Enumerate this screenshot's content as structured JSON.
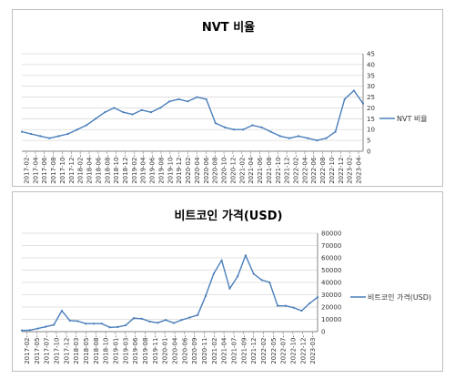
{
  "colors": {
    "series": "#4a7ebb",
    "grid": "#d9d9d9",
    "axis": "#868686"
  },
  "chart_data": [
    {
      "type": "line",
      "title": "NVT 비율",
      "series": [
        {
          "name": "NVT 비율"
        }
      ],
      "ylim": [
        0,
        45
      ],
      "yticks": [
        "0",
        "5",
        "10",
        "15",
        "20",
        "25",
        "30",
        "35",
        "40",
        "45"
      ],
      "xtick_labels": [
        "2017-02-",
        "2017-04-",
        "2017-06-",
        "2017-08-",
        "2017-10-",
        "2017-12-",
        "2018-02-",
        "2018-04-",
        "2018-06-",
        "2018-08-",
        "2018-10-",
        "2018-12-",
        "2019-02-",
        "2019-04-",
        "2019-06-",
        "2019-08-",
        "2019-10-",
        "2019-12-",
        "2020-02-",
        "2020-04-",
        "2020-06-",
        "2020-08-",
        "2020-10-",
        "2020-12-",
        "2021-02-",
        "2021-04-",
        "2021-06-",
        "2021-08-",
        "2021-10-",
        "2021-12-",
        "2022-02-",
        "2022-04-",
        "2022-06-",
        "2022-08-",
        "2022-10-",
        "2022-12-",
        "2023-02-",
        "2023-04-"
      ],
      "x": [
        "2017-02",
        "2017-04",
        "2017-06",
        "2017-08",
        "2017-10",
        "2017-12",
        "2018-02",
        "2018-04",
        "2018-06",
        "2018-08",
        "2018-10",
        "2018-12",
        "2019-02",
        "2019-04",
        "2019-06",
        "2019-08",
        "2019-10",
        "2019-12",
        "2020-02",
        "2020-04",
        "2020-06",
        "2020-08",
        "2020-10",
        "2020-12",
        "2021-02",
        "2021-04",
        "2021-06",
        "2021-08",
        "2021-10",
        "2021-12",
        "2022-02",
        "2022-04",
        "2022-06",
        "2022-08",
        "2022-10",
        "2022-12",
        "2023-02",
        "2023-04"
      ],
      "values": [
        9,
        8,
        7,
        6,
        7,
        8,
        10,
        12,
        15,
        18,
        20,
        18,
        17,
        19,
        18,
        20,
        23,
        24,
        23,
        25,
        24,
        13,
        11,
        10,
        10,
        12,
        11,
        9,
        7,
        6,
        7,
        6,
        5,
        6,
        9,
        24,
        28,
        22
      ],
      "grid": true,
      "legend": "right"
    },
    {
      "type": "line",
      "title": "비트코인 가격(USD)",
      "series": [
        {
          "name": "비트코인 가격(USD)"
        }
      ],
      "ylim": [
        0,
        80000
      ],
      "yticks": [
        "0",
        "10000",
        "20000",
        "30000",
        "40000",
        "50000",
        "60000",
        "70000",
        "80000"
      ],
      "xtick_labels": [
        "2017-02-",
        "2017-05-",
        "2017-07-",
        "2017-10-",
        "2017-12-",
        "2018-03-",
        "2018-05-",
        "2018-08-",
        "2018-10-",
        "2019-01-",
        "2019-03-",
        "2019-06-",
        "2019-08-",
        "2019-11-",
        "2020-01-",
        "2020-04-",
        "2020-06-",
        "2020-09-",
        "2020-11-",
        "2021-02-",
        "2021-04-",
        "2021-07-",
        "2021-09-",
        "2021-12-",
        "2022-02-",
        "2022-05-",
        "2022-07-",
        "2022-10-",
        "2022-12-",
        "2023-03-"
      ],
      "x": [
        "2017-02",
        "2017-04",
        "2017-06",
        "2017-08",
        "2017-10",
        "2017-12",
        "2018-02",
        "2018-04",
        "2018-06",
        "2018-08",
        "2018-10",
        "2018-12",
        "2019-02",
        "2019-04",
        "2019-06",
        "2019-08",
        "2019-10",
        "2019-12",
        "2020-02",
        "2020-04",
        "2020-06",
        "2020-08",
        "2020-10",
        "2020-12",
        "2021-02",
        "2021-04",
        "2021-06",
        "2021-08",
        "2021-10",
        "2021-12",
        "2022-02",
        "2022-04",
        "2022-06",
        "2022-08",
        "2022-10",
        "2022-12",
        "2023-02",
        "2023-04"
      ],
      "values": [
        1000,
        1200,
        2500,
        4000,
        5500,
        17000,
        9000,
        8500,
        6500,
        6500,
        6500,
        3500,
        3800,
        5200,
        11000,
        10500,
        8200,
        7200,
        9500,
        7000,
        9500,
        11500,
        13500,
        29000,
        47000,
        58000,
        35000,
        45000,
        62000,
        47000,
        42000,
        40000,
        21000,
        21000,
        19500,
        17000,
        23000,
        28000
      ],
      "grid": true,
      "legend": "right"
    }
  ]
}
